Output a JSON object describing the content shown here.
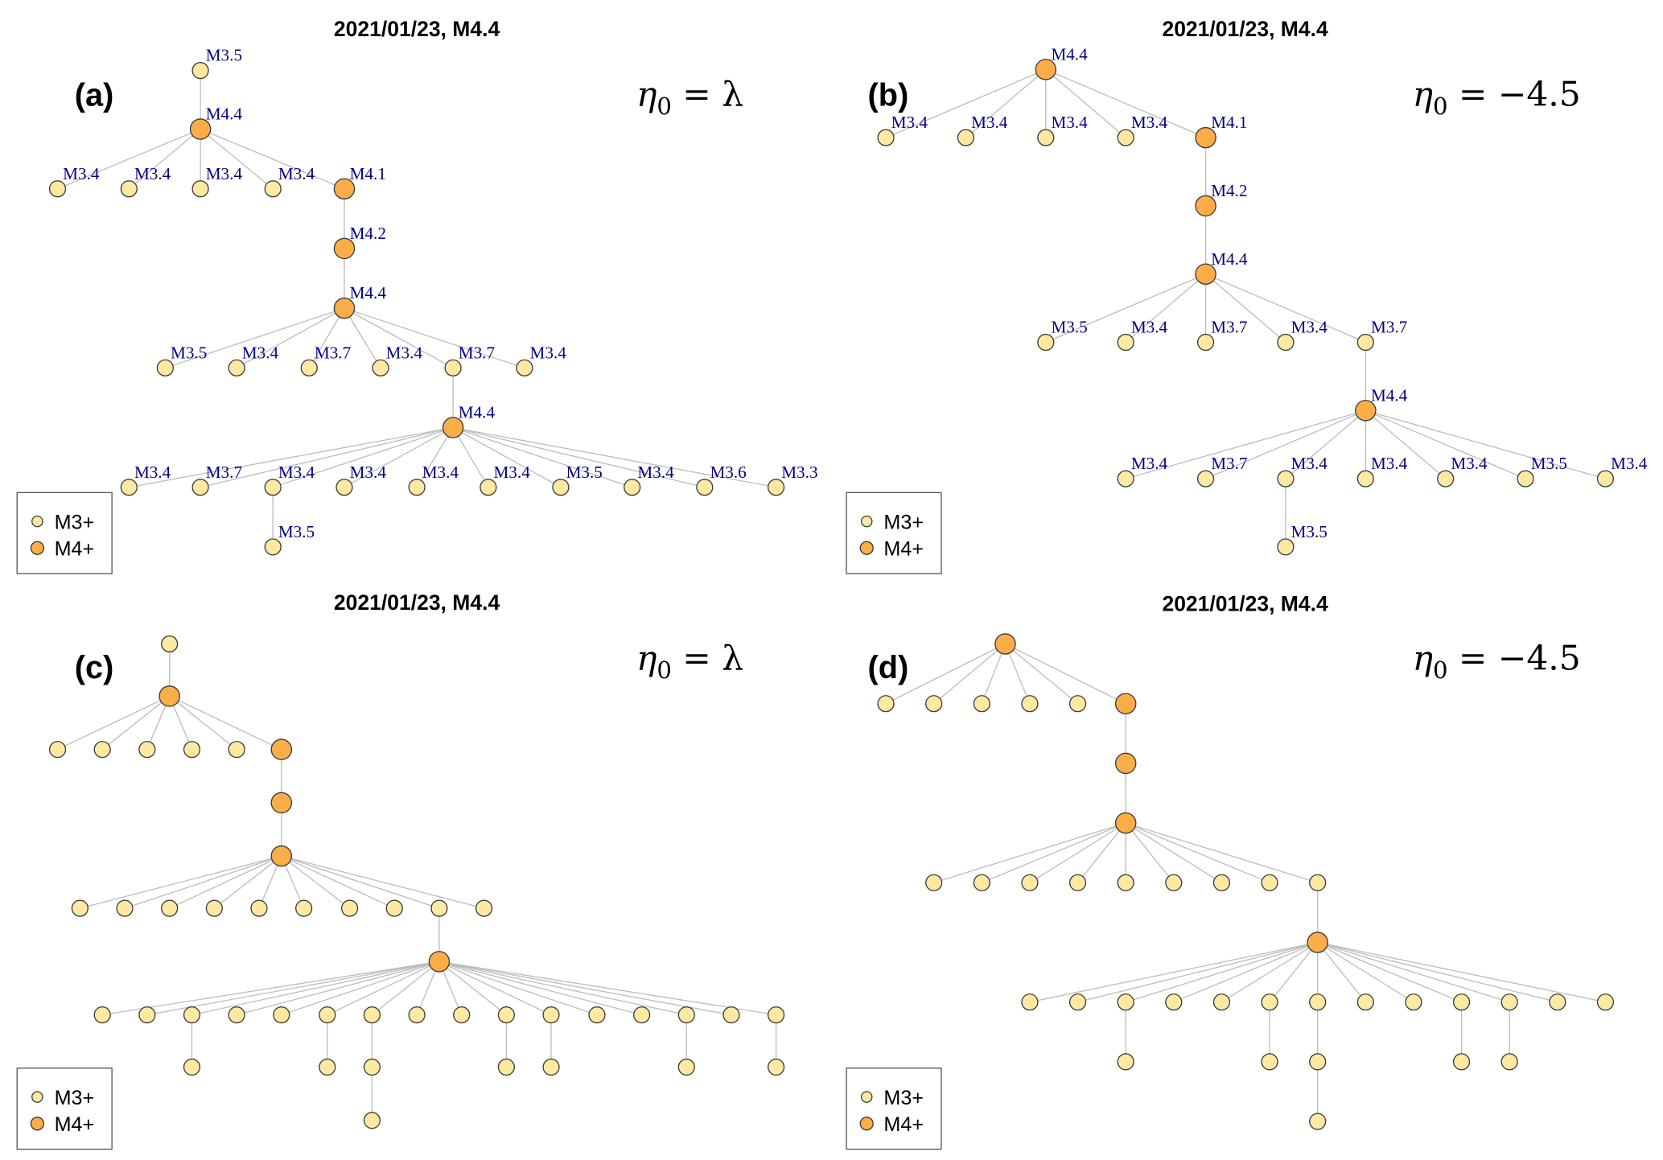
{
  "colors": {
    "m3": "#fde9a1",
    "m4": "#fbad47",
    "edge": "#bdbdbd",
    "label": "#00008b"
  },
  "legend": [
    {
      "label": "M3+",
      "class": "M3+"
    },
    {
      "label": "M4+",
      "class": "M4+"
    }
  ],
  "panels": [
    {
      "title": "2021/01/23, M4.4",
      "panel_label": "(a)",
      "eta": {
        "symbol": "η",
        "subscript": "0",
        "rhs": "= λ"
      },
      "nodes": [
        {
          "label": "M3.5",
          "c": "M3+",
          "p": -1
        },
        {
          "label": "M4.4",
          "c": "M4+",
          "p": 0
        },
        {
          "label": "M3.4",
          "c": "M3+",
          "p": 1
        },
        {
          "label": "M3.4",
          "c": "M3+",
          "p": 1
        },
        {
          "label": "M3.4",
          "c": "M3+",
          "p": 1
        },
        {
          "label": "M3.4",
          "c": "M3+",
          "p": 1
        },
        {
          "label": "M4.1",
          "c": "M4+",
          "p": 1
        },
        {
          "label": "M4.2",
          "c": "M4+",
          "p": 6
        },
        {
          "label": "M4.4",
          "c": "M4+",
          "p": 7
        },
        {
          "label": "M3.5",
          "c": "M3+",
          "p": 8
        },
        {
          "label": "M3.4",
          "c": "M3+",
          "p": 8
        },
        {
          "label": "M3.7",
          "c": "M3+",
          "p": 8
        },
        {
          "label": "M3.4",
          "c": "M3+",
          "p": 8
        },
        {
          "label": "M3.7",
          "c": "M3+",
          "p": 8
        },
        {
          "label": "M3.4",
          "c": "M3+",
          "p": 8
        },
        {
          "label": "M4.4",
          "c": "M4+",
          "p": 13
        },
        {
          "label": "M3.4",
          "c": "M3+",
          "p": 15
        },
        {
          "label": "M3.7",
          "c": "M3+",
          "p": 15
        },
        {
          "label": "M3.4",
          "c": "M3+",
          "p": 15
        },
        {
          "label": "M3.4",
          "c": "M3+",
          "p": 15
        },
        {
          "label": "M3.4",
          "c": "M3+",
          "p": 15
        },
        {
          "label": "M3.4",
          "c": "M3+",
          "p": 15
        },
        {
          "label": "M3.5",
          "c": "M3+",
          "p": 15
        },
        {
          "label": "M3.4",
          "c": "M3+",
          "p": 15
        },
        {
          "label": "M3.6",
          "c": "M3+",
          "p": 15
        },
        {
          "label": "M3.3",
          "c": "M3+",
          "p": 15
        },
        {
          "label": "M3.5",
          "c": "M3+",
          "p": 18
        }
      ]
    },
    {
      "title": "2021/01/23, M4.4",
      "panel_label": "(b)",
      "eta": {
        "symbol": "η",
        "subscript": "0",
        "rhs": "= −4.5"
      },
      "nodes": [
        {
          "label": "M4.4",
          "c": "M4+",
          "p": -1
        },
        {
          "label": "M3.4",
          "c": "M3+",
          "p": 0
        },
        {
          "label": "M3.4",
          "c": "M3+",
          "p": 0
        },
        {
          "label": "M3.4",
          "c": "M3+",
          "p": 0
        },
        {
          "label": "M3.4",
          "c": "M3+",
          "p": 0
        },
        {
          "label": "M4.1",
          "c": "M4+",
          "p": 0
        },
        {
          "label": "M4.2",
          "c": "M4+",
          "p": 5
        },
        {
          "label": "M4.4",
          "c": "M4+",
          "p": 6
        },
        {
          "label": "M3.5",
          "c": "M3+",
          "p": 7
        },
        {
          "label": "M3.4",
          "c": "M3+",
          "p": 7
        },
        {
          "label": "M3.7",
          "c": "M3+",
          "p": 7
        },
        {
          "label": "M3.4",
          "c": "M3+",
          "p": 7
        },
        {
          "label": "M3.7",
          "c": "M3+",
          "p": 7
        },
        {
          "label": "M4.4",
          "c": "M4+",
          "p": 12
        },
        {
          "label": "M3.4",
          "c": "M3+",
          "p": 13
        },
        {
          "label": "M3.7",
          "c": "M3+",
          "p": 13
        },
        {
          "label": "M3.4",
          "c": "M3+",
          "p": 13
        },
        {
          "label": "M3.4",
          "c": "M3+",
          "p": 13
        },
        {
          "label": "M3.4",
          "c": "M3+",
          "p": 13
        },
        {
          "label": "M3.5",
          "c": "M3+",
          "p": 13
        },
        {
          "label": "M3.4",
          "c": "M3+",
          "p": 13
        },
        {
          "label": "M3.5",
          "c": "M3+",
          "p": 16
        }
      ]
    },
    {
      "title": "2021/01/23, M4.4",
      "panel_label": "(c)",
      "eta": {
        "symbol": "η",
        "subscript": "0",
        "rhs": "= λ"
      },
      "nodes": [
        {
          "c": "M3+",
          "p": -1
        },
        {
          "c": "M4+",
          "p": 0
        },
        {
          "c": "M3+",
          "p": 1
        },
        {
          "c": "M3+",
          "p": 1
        },
        {
          "c": "M3+",
          "p": 1
        },
        {
          "c": "M3+",
          "p": 1
        },
        {
          "c": "M3+",
          "p": 1
        },
        {
          "c": "M4+",
          "p": 1
        },
        {
          "c": "M4+",
          "p": 7
        },
        {
          "c": "M4+",
          "p": 8
        },
        {
          "c": "M3+",
          "p": 9
        },
        {
          "c": "M3+",
          "p": 9
        },
        {
          "c": "M3+",
          "p": 9
        },
        {
          "c": "M3+",
          "p": 9
        },
        {
          "c": "M3+",
          "p": 9
        },
        {
          "c": "M3+",
          "p": 9
        },
        {
          "c": "M3+",
          "p": 9
        },
        {
          "c": "M3+",
          "p": 9
        },
        {
          "c": "M3+",
          "p": 9
        },
        {
          "c": "M3+",
          "p": 9
        },
        {
          "c": "M4+",
          "p": 18
        },
        {
          "c": "M3+",
          "p": 20
        },
        {
          "c": "M3+",
          "p": 20
        },
        {
          "c": "M3+",
          "p": 20
        },
        {
          "c": "M3+",
          "p": 20
        },
        {
          "c": "M3+",
          "p": 20
        },
        {
          "c": "M3+",
          "p": 20
        },
        {
          "c": "M3+",
          "p": 20
        },
        {
          "c": "M3+",
          "p": 20
        },
        {
          "c": "M3+",
          "p": 20
        },
        {
          "c": "M3+",
          "p": 20
        },
        {
          "c": "M3+",
          "p": 20
        },
        {
          "c": "M3+",
          "p": 20
        },
        {
          "c": "M3+",
          "p": 20
        },
        {
          "c": "M3+",
          "p": 20
        },
        {
          "c": "M3+",
          "p": 20
        },
        {
          "c": "M3+",
          "p": 20
        },
        {
          "c": "M3+",
          "p": 23
        },
        {
          "c": "M3+",
          "p": 26
        },
        {
          "c": "M3+",
          "p": 27
        },
        {
          "c": "M3+",
          "p": 30
        },
        {
          "c": "M3+",
          "p": 31
        },
        {
          "c": "M3+",
          "p": 34
        },
        {
          "c": "M3+",
          "p": 36
        },
        {
          "c": "M3+",
          "p": 39
        }
      ]
    },
    {
      "title": "2021/01/23, M4.4",
      "panel_label": "(d)",
      "eta": {
        "symbol": "η",
        "subscript": "0",
        "rhs": "= −4.5"
      },
      "nodes": [
        {
          "c": "M4+",
          "p": -1
        },
        {
          "c": "M3+",
          "p": 0
        },
        {
          "c": "M3+",
          "p": 0
        },
        {
          "c": "M3+",
          "p": 0
        },
        {
          "c": "M3+",
          "p": 0
        },
        {
          "c": "M3+",
          "p": 0
        },
        {
          "c": "M4+",
          "p": 0
        },
        {
          "c": "M4+",
          "p": 6
        },
        {
          "c": "M4+",
          "p": 7
        },
        {
          "c": "M3+",
          "p": 8
        },
        {
          "c": "M3+",
          "p": 8
        },
        {
          "c": "M3+",
          "p": 8
        },
        {
          "c": "M3+",
          "p": 8
        },
        {
          "c": "M3+",
          "p": 8
        },
        {
          "c": "M3+",
          "p": 8
        },
        {
          "c": "M3+",
          "p": 8
        },
        {
          "c": "M3+",
          "p": 8
        },
        {
          "c": "M3+",
          "p": 8
        },
        {
          "c": "M4+",
          "p": 17
        },
        {
          "c": "M3+",
          "p": 18
        },
        {
          "c": "M3+",
          "p": 18
        },
        {
          "c": "M3+",
          "p": 18
        },
        {
          "c": "M3+",
          "p": 18
        },
        {
          "c": "M3+",
          "p": 18
        },
        {
          "c": "M3+",
          "p": 18
        },
        {
          "c": "M3+",
          "p": 18
        },
        {
          "c": "M3+",
          "p": 18
        },
        {
          "c": "M3+",
          "p": 18
        },
        {
          "c": "M3+",
          "p": 18
        },
        {
          "c": "M3+",
          "p": 18
        },
        {
          "c": "M3+",
          "p": 18
        },
        {
          "c": "M3+",
          "p": 18
        },
        {
          "c": "M3+",
          "p": 21
        },
        {
          "c": "M3+",
          "p": 24
        },
        {
          "c": "M3+",
          "p": 25
        },
        {
          "c": "M3+",
          "p": 28
        },
        {
          "c": "M3+",
          "p": 29
        },
        {
          "c": "M3+",
          "p": 34
        }
      ]
    }
  ]
}
